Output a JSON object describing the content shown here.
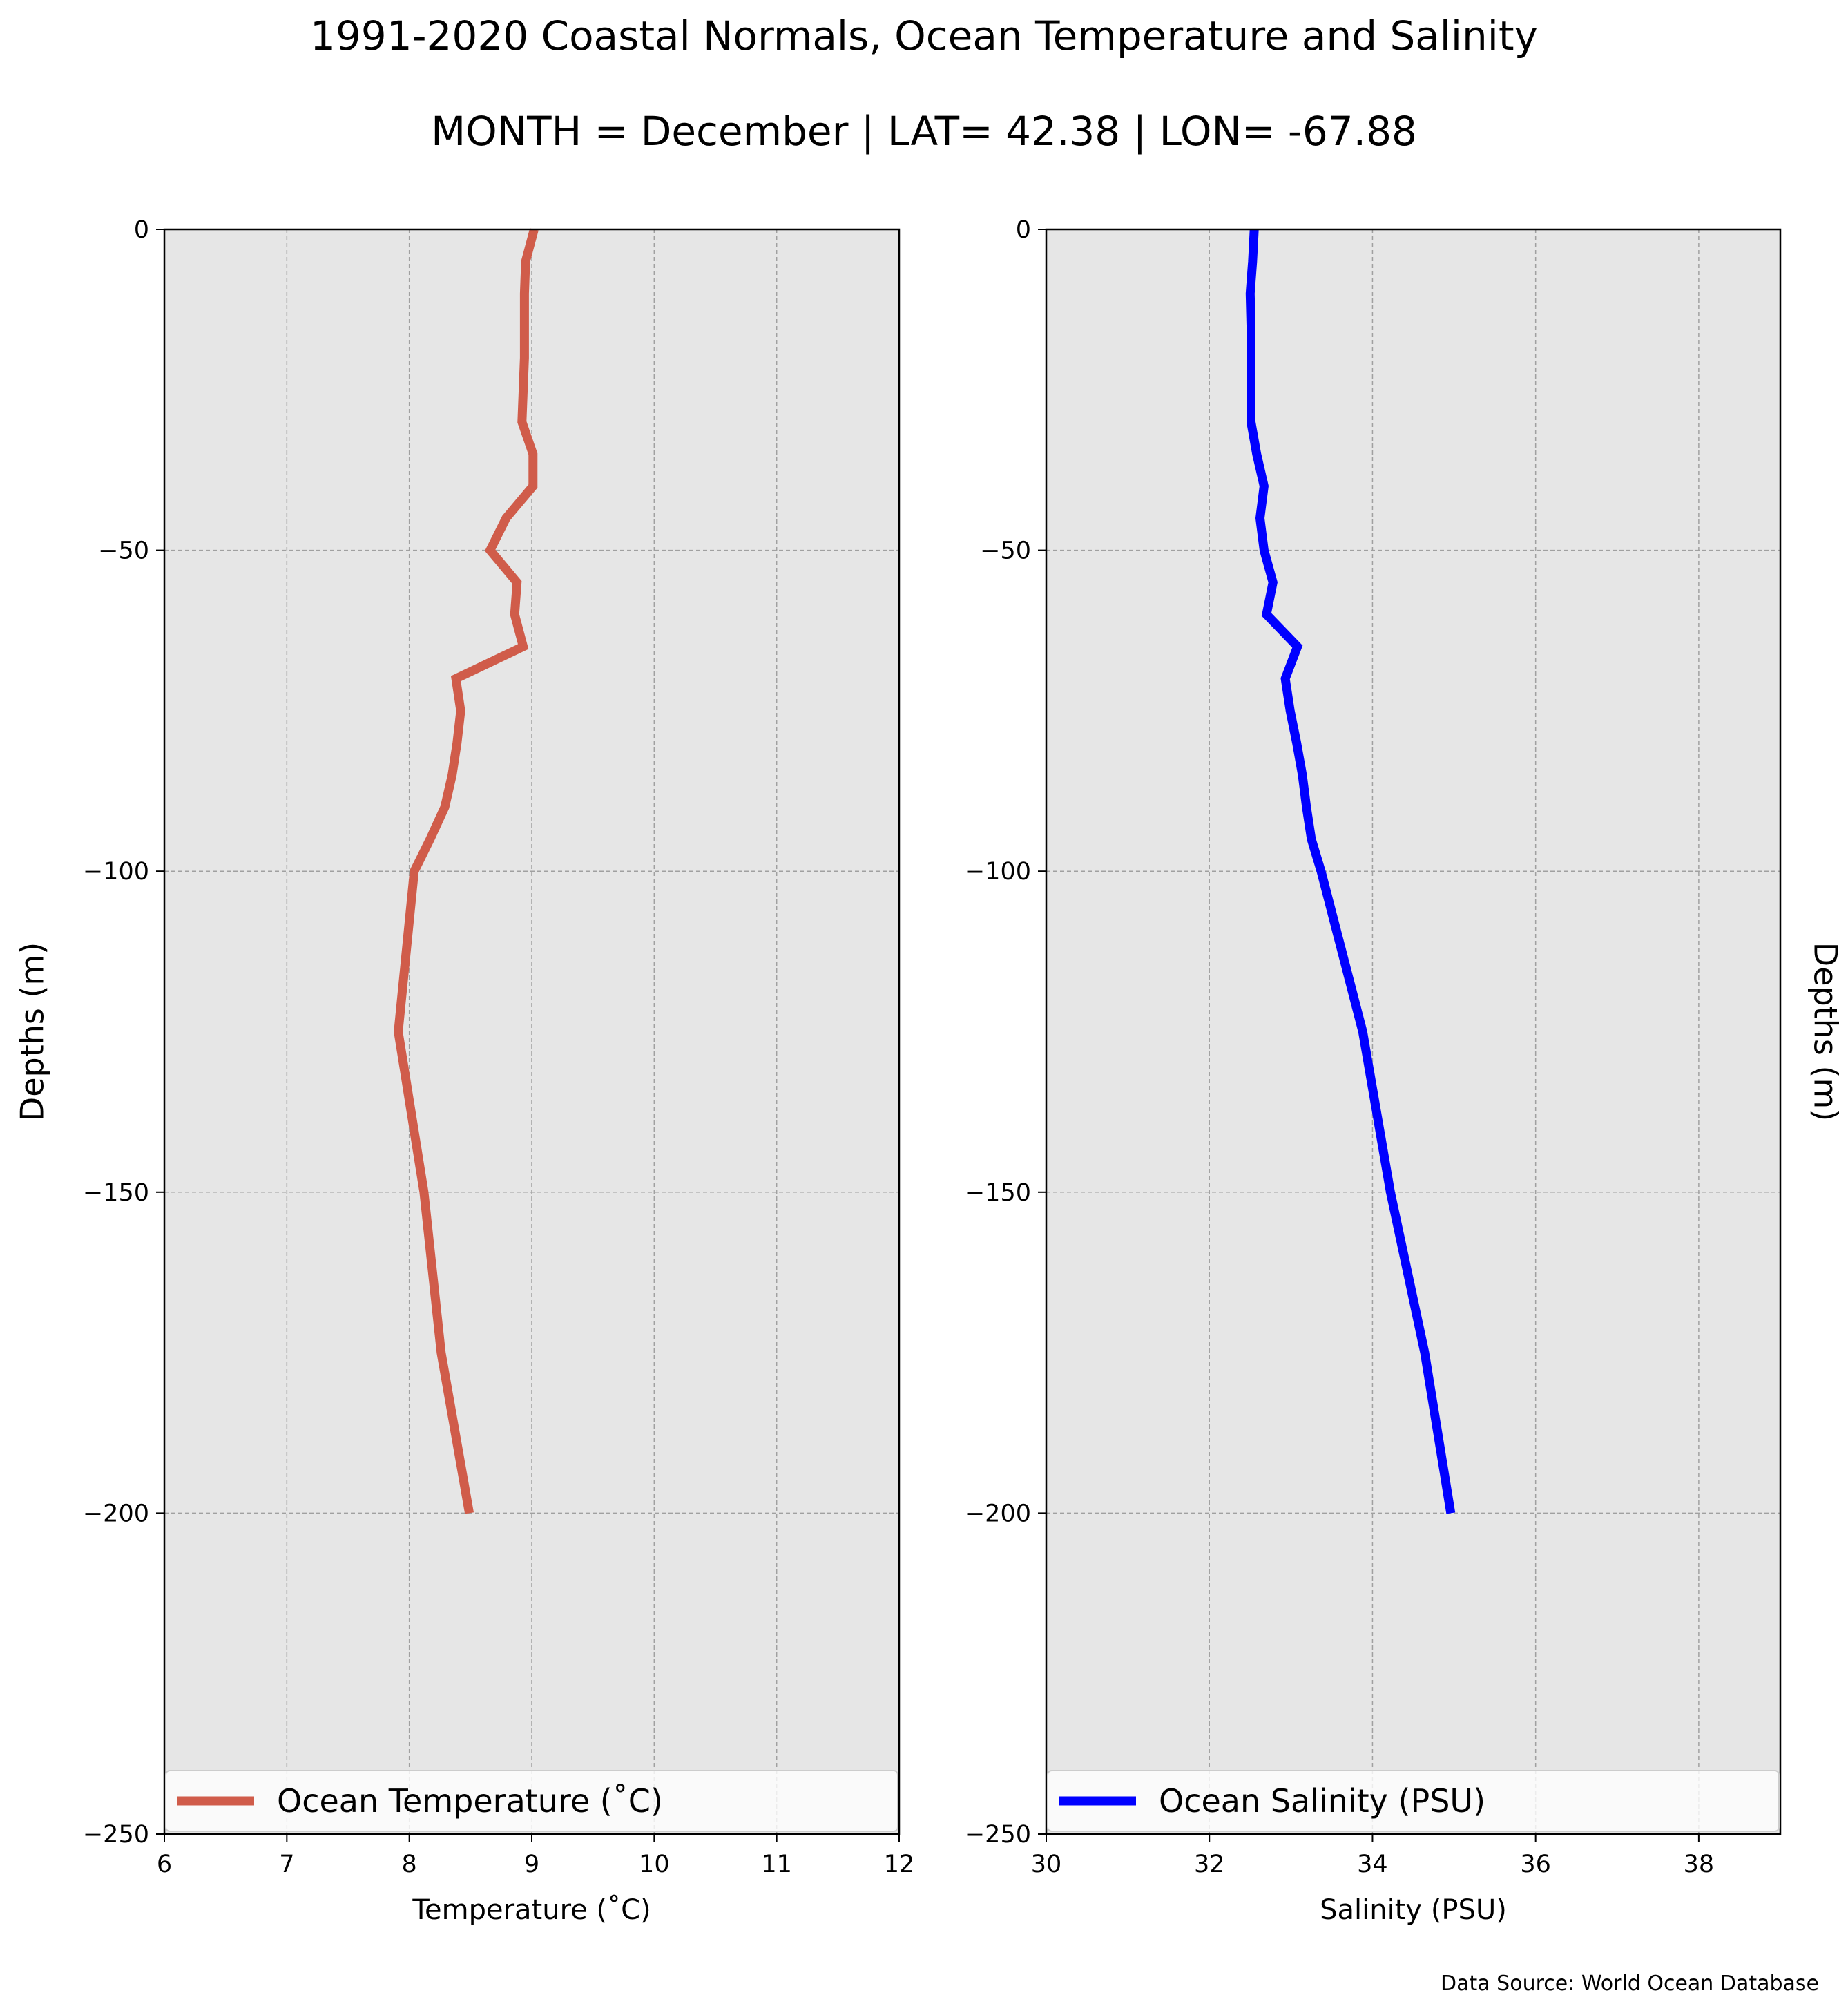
{
  "figure": {
    "title": "1991-2020 Coastal Normals, Ocean Temperature and Salinity",
    "subtitle": "MONTH = December | LAT= 42.38 | LON= -67.88",
    "source": "Data Source: World Ocean Database",
    "background": "#ffffff",
    "axes_facecolor": "#e6e6e6",
    "grid_color": "#a0a0a0"
  },
  "chart_data": [
    {
      "type": "line",
      "id": "temperature",
      "xlabel": "Temperature ($^\\circ$C)",
      "xlabel_display": "Temperature (˚C)",
      "ylabel": "Depths (m)",
      "ylabel_side": "left",
      "xlim": [
        6,
        12
      ],
      "ylim": [
        -250,
        0
      ],
      "xticks": [
        6,
        7,
        8,
        9,
        10,
        11,
        12
      ],
      "xtick_labels": [
        "6",
        "7",
        "8",
        "9",
        "10",
        "11",
        "12"
      ],
      "yticks": [
        0,
        -50,
        -100,
        -150,
        -200,
        -250
      ],
      "ytick_labels": [
        "0",
        "−50",
        "−100",
        "−150",
        "−200",
        "−250"
      ],
      "grid": true,
      "legend_position": "lower center",
      "series": [
        {
          "name": "Ocean Temperature ($^\\circ$C)",
          "legend_label": "Ocean Temperature (˚C)",
          "color": "#d05c4a",
          "depth": [
            0,
            -5,
            -10,
            -15,
            -20,
            -25,
            -30,
            -35,
            -40,
            -45,
            -50,
            -55,
            -60,
            -65,
            -70,
            -75,
            -80,
            -85,
            -90,
            -95,
            -100,
            -125,
            -150,
            -175,
            -200
          ],
          "values": [
            9.02,
            8.95,
            8.94,
            8.94,
            8.94,
            8.93,
            8.92,
            9.01,
            9.01,
            8.79,
            8.66,
            8.88,
            8.86,
            8.93,
            8.38,
            8.42,
            8.39,
            8.35,
            8.29,
            8.17,
            8.04,
            7.91,
            8.12,
            8.26,
            8.49
          ]
        }
      ]
    },
    {
      "type": "line",
      "id": "salinity",
      "xlabel": "Salinity (PSU)",
      "ylabel": "Depths (m)",
      "ylabel_side": "right",
      "xlim": [
        30,
        39
      ],
      "ylim": [
        -250,
        0
      ],
      "xticks": [
        30,
        32,
        34,
        36,
        38
      ],
      "xtick_labels": [
        "30",
        "32",
        "34",
        "36",
        "38"
      ],
      "yticks": [
        0,
        -50,
        -100,
        -150,
        -200,
        -250
      ],
      "ytick_labels": [
        "0",
        "−50",
        "−100",
        "−150",
        "−200",
        "−250"
      ],
      "grid": true,
      "legend_position": "lower center",
      "series": [
        {
          "name": "Ocean Salinity (PSU)",
          "legend_label": "Ocean Salinity (PSU)",
          "color": "#0000ff",
          "depth": [
            0,
            -5,
            -10,
            -15,
            -20,
            -25,
            -30,
            -35,
            -40,
            -45,
            -50,
            -55,
            -60,
            -65,
            -70,
            -75,
            -80,
            -85,
            -90,
            -95,
            -100,
            -125,
            -150,
            -175,
            -200
          ],
          "values": [
            32.55,
            32.53,
            32.5,
            32.51,
            32.51,
            32.51,
            32.51,
            32.58,
            32.67,
            32.62,
            32.67,
            32.78,
            32.7,
            33.08,
            32.93,
            32.99,
            33.07,
            33.14,
            33.19,
            33.25,
            33.37,
            33.88,
            34.22,
            34.64,
            34.96
          ]
        }
      ]
    }
  ]
}
